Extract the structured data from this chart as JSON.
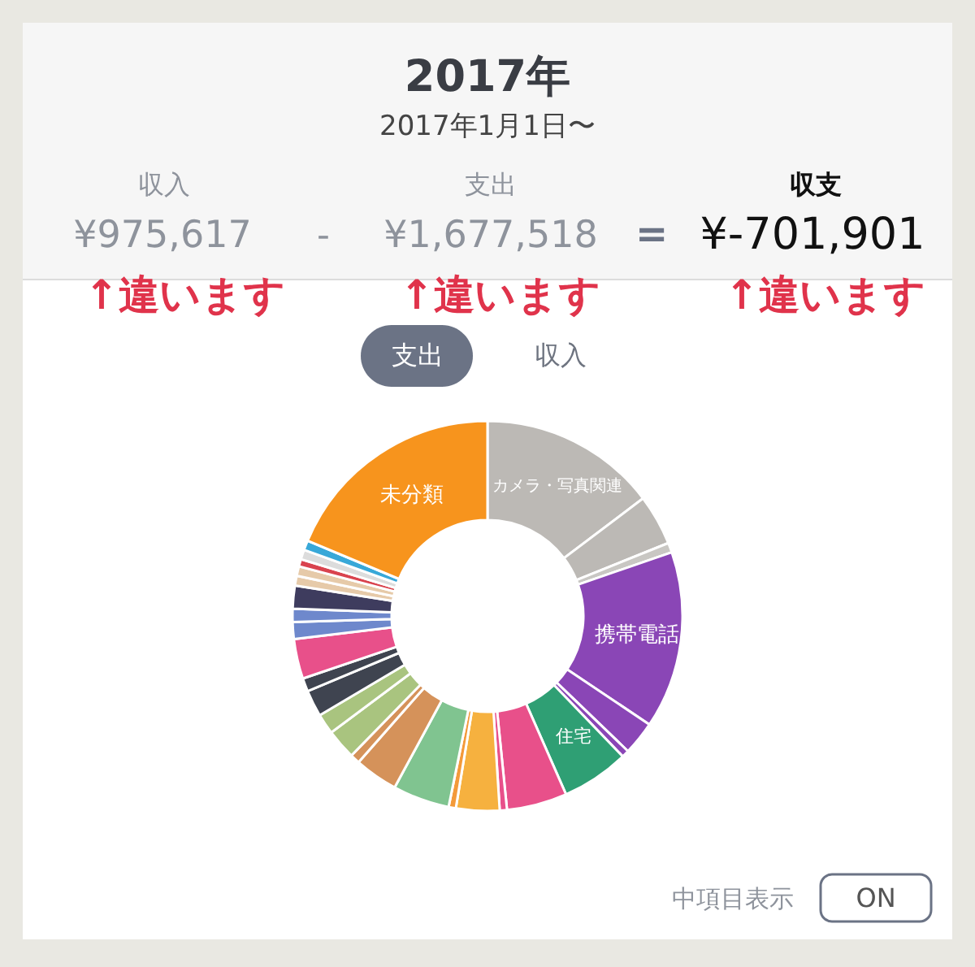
{
  "chart_data": {
    "type": "donut",
    "title": "2017年",
    "subtitle": "2017年1月1日〜",
    "categories": [
      "カメラ・写真関連",
      null,
      null,
      "携帯電話",
      null,
      null,
      "住宅",
      null,
      null,
      null,
      null,
      null,
      null,
      null,
      null,
      null,
      null,
      null,
      null,
      null,
      null,
      null,
      null,
      null,
      null,
      null,
      null,
      "未分類"
    ],
    "values": [
      14.7,
      4.2,
      0.8,
      14.7,
      2.8,
      0.6,
      5.6,
      5.0,
      0.6,
      3.6,
      0.6,
      4.7,
      3.6,
      0.8,
      2.5,
      1.7,
      2.2,
      1.1,
      3.3,
      1.4,
      1.1,
      1.9,
      0.8,
      0.8,
      0.6,
      0.8,
      0.8,
      18.7
    ],
    "colors": [
      "#bcb9b5",
      "#bcb9b5",
      "#c9c7c3",
      "#8a46b6",
      "#8a46b6",
      "#8a46b6",
      "#2f9f74",
      "#e8508a",
      "#e8508a",
      "#f6b13f",
      "#f39a3a",
      "#80c490",
      "#d5925a",
      "#d5925a",
      "#a9c47f",
      "#a9c47f",
      "#3f4450",
      "#3f4450",
      "#e8508a",
      "#6e88cc",
      "#6e88cc",
      "#3e3c5e",
      "#e6caa9",
      "#e6caa9",
      "#d9434e",
      "#dcdcdc",
      "#38a8d8",
      "#f7941d"
    ],
    "annotations": [
      "収入",
      "¥975,617",
      "-",
      "支出",
      "¥1,677,518",
      "=",
      "収支",
      "¥-701,901",
      "↑違います",
      "↑違います",
      "↑違います",
      "支出",
      "収入",
      "中項目表示",
      "ON"
    ]
  }
}
